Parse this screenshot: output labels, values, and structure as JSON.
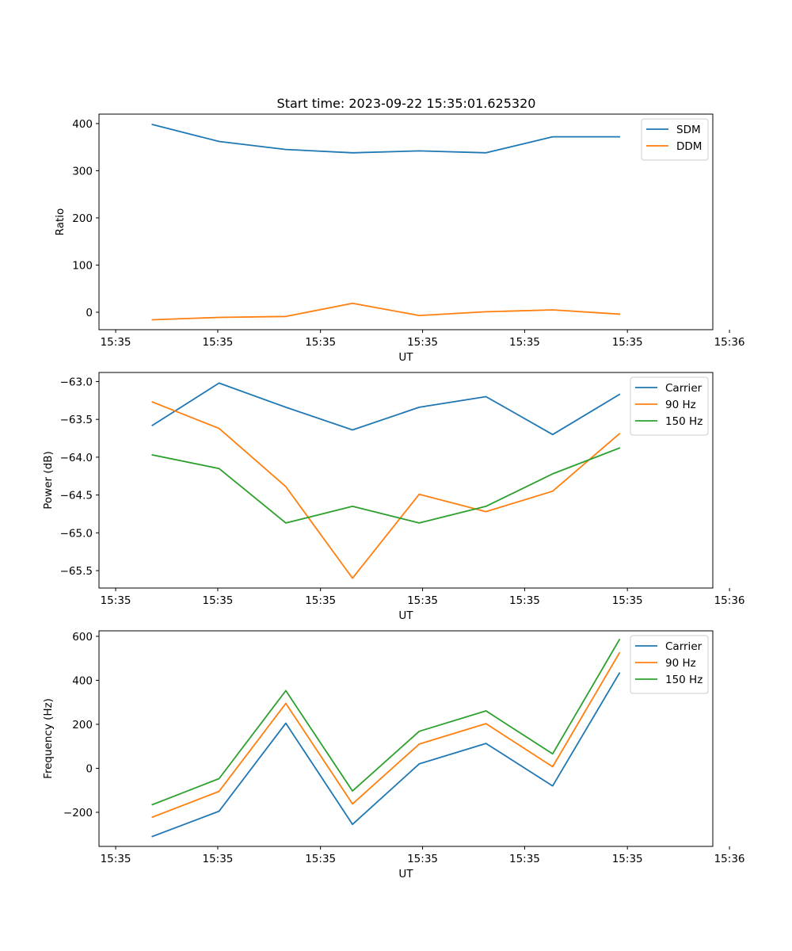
{
  "chart_data": [
    {
      "type": "line",
      "title": "Start time: 2023-09-22 15:35:01.625320",
      "xlabel": "UT",
      "ylabel": "Ratio",
      "x": [
        1,
        2,
        3,
        4,
        5,
        6,
        7,
        8
      ],
      "xlim": [
        0.2,
        9.4
      ],
      "xticks": [
        0.45,
        1.98,
        3.52,
        5.05,
        6.58,
        8.12,
        9.65
      ],
      "xtick_labels": [
        "15:35",
        "15:35",
        "15:35",
        "15:35",
        "15:35",
        "15:35",
        "15:36"
      ],
      "ylim": [
        -37,
        420
      ],
      "yticks": [
        0,
        100,
        200,
        300,
        400
      ],
      "ytick_labels": [
        "0",
        "100",
        "200",
        "300",
        "400"
      ],
      "legend_position": "top-right",
      "series": [
        {
          "name": "SDM",
          "color": "#1f77b4",
          "values": [
            398,
            362,
            345,
            338,
            342,
            338,
            372,
            372
          ]
        },
        {
          "name": "DDM",
          "color": "#ff7f0e",
          "values": [
            -16,
            -11,
            -9,
            19,
            -7,
            1,
            5,
            -4
          ]
        }
      ]
    },
    {
      "type": "line",
      "title": "",
      "xlabel": "UT",
      "ylabel": "Power (dB)",
      "x": [
        1,
        2,
        3,
        4,
        5,
        6,
        7,
        8
      ],
      "xlim": [
        0.2,
        9.4
      ],
      "xticks": [
        0.45,
        1.98,
        3.52,
        5.05,
        6.58,
        8.12,
        9.65
      ],
      "xtick_labels": [
        "15:35",
        "15:35",
        "15:35",
        "15:35",
        "15:35",
        "15:35",
        "15:36"
      ],
      "ylim": [
        -65.73,
        -62.88
      ],
      "yticks": [
        -63.0,
        -63.5,
        -64.0,
        -64.5,
        -65.0,
        -65.5
      ],
      "ytick_labels": [
        "−63.0",
        "−63.5",
        "−64.0",
        "−64.5",
        "−65.0",
        "−65.5"
      ],
      "legend_position": "top-right",
      "series": [
        {
          "name": "Carrier",
          "color": "#1f77b4",
          "values": [
            -63.58,
            -63.02,
            -63.34,
            -63.64,
            -63.34,
            -63.2,
            -63.7,
            -63.17
          ]
        },
        {
          "name": "90 Hz",
          "color": "#ff7f0e",
          "values": [
            -63.27,
            -63.62,
            -64.39,
            -65.6,
            -64.49,
            -64.72,
            -64.45,
            -63.69
          ]
        },
        {
          "name": "150 Hz",
          "color": "#2ca02c",
          "values": [
            -63.97,
            -64.15,
            -64.87,
            -64.65,
            -64.87,
            -64.65,
            -64.22,
            -63.88
          ]
        }
      ]
    },
    {
      "type": "line",
      "title": "",
      "xlabel": "UT",
      "ylabel": "Frequency (Hz)",
      "x": [
        1,
        2,
        3,
        4,
        5,
        6,
        7,
        8
      ],
      "xlim": [
        0.2,
        9.4
      ],
      "xticks": [
        0.45,
        1.98,
        3.52,
        5.05,
        6.58,
        8.12,
        9.65
      ],
      "xtick_labels": [
        "15:35",
        "15:35",
        "15:35",
        "15:35",
        "15:35",
        "15:35",
        "15:36"
      ],
      "ylim": [
        -355,
        625
      ],
      "yticks": [
        -200,
        0,
        200,
        400,
        600
      ],
      "ytick_labels": [
        "−200",
        "0",
        "200",
        "400",
        "600"
      ],
      "legend_position": "top-right",
      "series": [
        {
          "name": "Carrier",
          "color": "#1f77b4",
          "values": [
            -310,
            -195,
            205,
            -255,
            20,
            113,
            -80,
            433
          ]
        },
        {
          "name": "90 Hz",
          "color": "#ff7f0e",
          "values": [
            -222,
            -105,
            295,
            -162,
            110,
            203,
            7,
            525
          ]
        },
        {
          "name": "150 Hz",
          "color": "#2ca02c",
          "values": [
            -165,
            -47,
            353,
            -103,
            168,
            261,
            66,
            585
          ]
        }
      ]
    }
  ]
}
